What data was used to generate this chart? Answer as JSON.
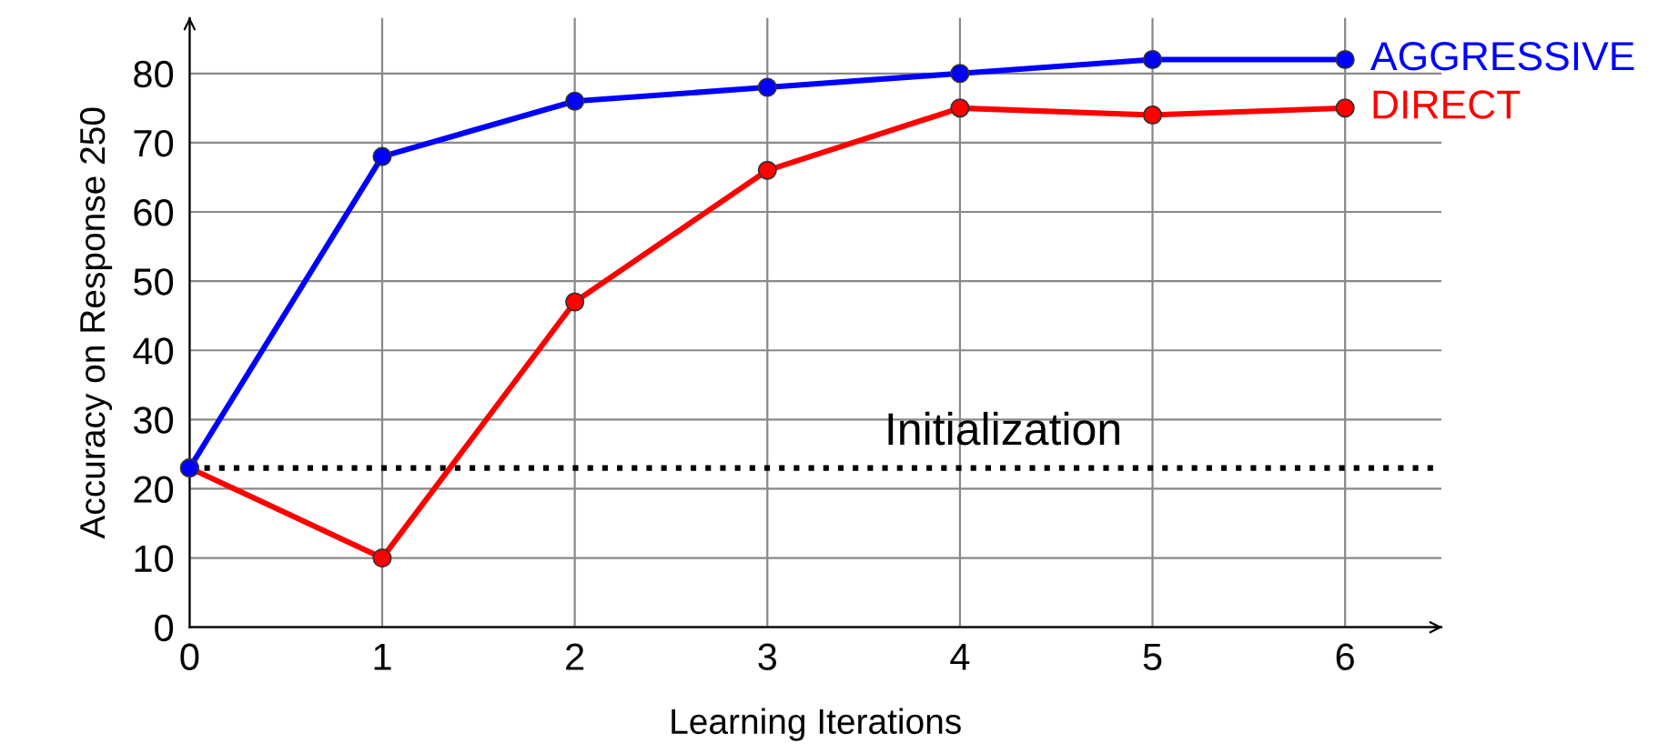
{
  "chart_data": {
    "type": "line",
    "xlabel": "Learning Iterations",
    "ylabel": "Accuracy on Response 250",
    "x": [
      0,
      1,
      2,
      3,
      4,
      5,
      6
    ],
    "series": [
      {
        "name": "AGGRESSIVE",
        "color": "#0000ff",
        "values": [
          23,
          68,
          76,
          78,
          80,
          82,
          82
        ]
      },
      {
        "name": "DIRECT",
        "color": "#ff0000",
        "values": [
          23,
          10,
          47,
          66,
          75,
          74,
          75
        ]
      }
    ],
    "ref_lines": [
      {
        "axis": "y",
        "value": 23,
        "label": "Initialization",
        "color": "#000000",
        "line_style": "dotted"
      }
    ],
    "xlim": [
      0,
      6.5
    ],
    "ylim": [
      0,
      88
    ],
    "xticks": [
      0,
      1,
      2,
      3,
      4,
      5,
      6
    ],
    "yticks": [
      0,
      10,
      20,
      30,
      40,
      50,
      60,
      70,
      80
    ],
    "grid": true,
    "legend": false,
    "marker": "circle",
    "line_style": "solid"
  }
}
